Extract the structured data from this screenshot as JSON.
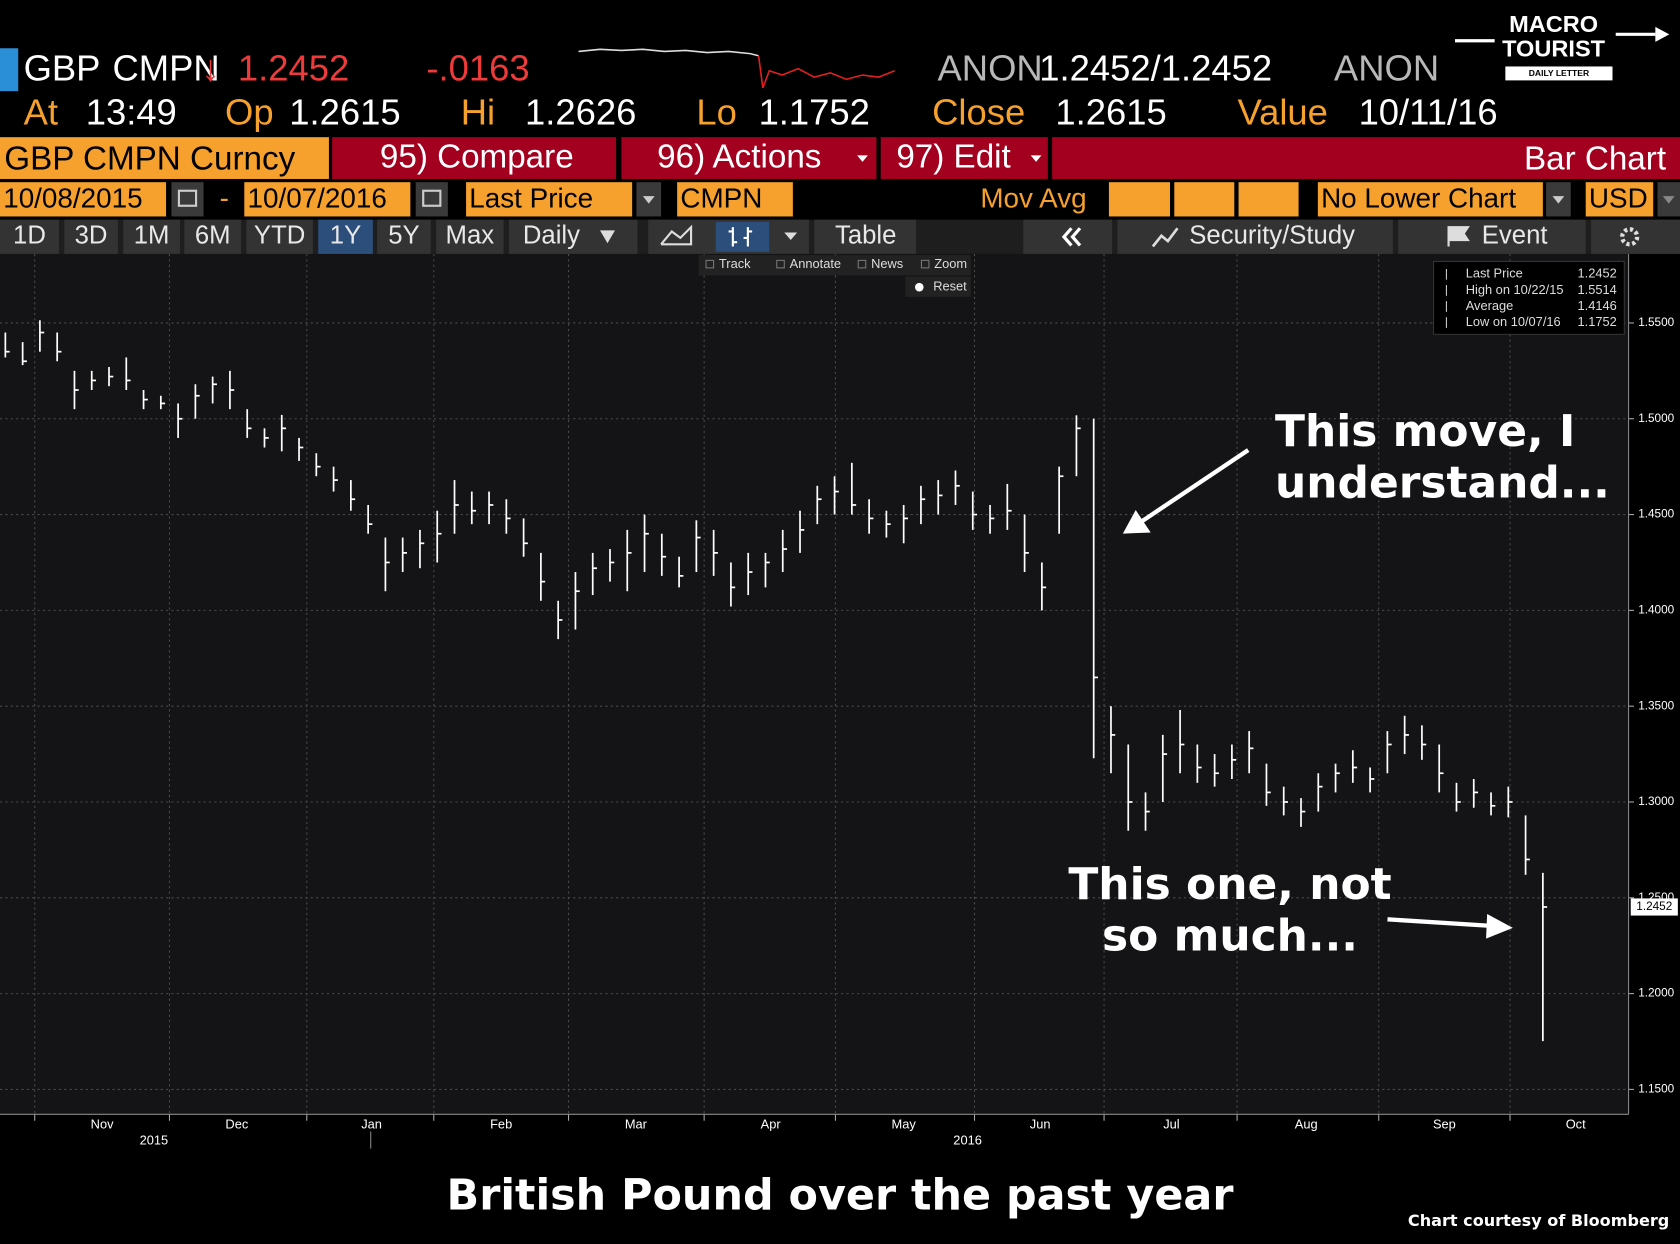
{
  "ticker": {
    "symbol": "GBP",
    "source": "CMPN",
    "arrow": "↓",
    "price": "1.2452",
    "change": "-.0163",
    "bid_source": "ANON",
    "bid_ask": "1.2452/1.2452",
    "ask_source": "ANON"
  },
  "quote_line": [
    {
      "label": "At",
      "value": "13:49"
    },
    {
      "label": "Op",
      "value": "1.2615"
    },
    {
      "label": "Hi",
      "value": "1.2626"
    },
    {
      "label": "Lo",
      "value": "1.1752"
    },
    {
      "label": "Close",
      "value": "1.2615"
    },
    {
      "label": "Value",
      "value": "10/11/16"
    }
  ],
  "logo": {
    "line1": "MACRO",
    "line2": "TOURIST",
    "line3": "DAILY LETTER"
  },
  "menu": {
    "security": "GBP CMPN Curncy",
    "buttons": [
      "95) Compare",
      "96) Actions",
      "97) Edit"
    ],
    "view": "Bar Chart"
  },
  "controls": {
    "start": "10/08/2015",
    "dash": "-",
    "end": "10/07/2016",
    "field": "Last Price",
    "source": "CMPN",
    "study": "Mov Avg",
    "lower": "No Lower Chart",
    "currency": "USD"
  },
  "tabs": [
    "1D",
    "3D",
    "1M",
    "6M",
    "YTD",
    "1Y",
    "5Y",
    "Max",
    "Daily"
  ],
  "tools": {
    "table": "Table",
    "security_study": "Security/Study",
    "event": "Event"
  },
  "chart_tools": [
    "Track",
    "Annotate",
    "News",
    "Zoom"
  ],
  "reset": "Reset",
  "chart_data": {
    "type": "ohlc",
    "color": "#ffffff",
    "grid": true,
    "high": [
      1.545,
      1.54,
      1.5514,
      1.545,
      1.525,
      1.525,
      1.527,
      1.532,
      1.515,
      1.512,
      1.508,
      1.518,
      1.522,
      1.525,
      1.505,
      1.495,
      1.502,
      1.49,
      1.482,
      1.475,
      1.468,
      1.455,
      1.438,
      1.438,
      1.442,
      1.452,
      1.468,
      1.462,
      1.462,
      1.458,
      1.448,
      1.43,
      1.405,
      1.42,
      1.43,
      1.432,
      1.442,
      1.45,
      1.44,
      1.428,
      1.447,
      1.442,
      1.425,
      1.43,
      1.43,
      1.442,
      1.452,
      1.465,
      1.47,
      1.477,
      1.458,
      1.452,
      1.455,
      1.465,
      1.468,
      1.473,
      1.462,
      1.455,
      1.466,
      1.45,
      1.425,
      1.475,
      1.5018,
      1.5,
      1.35,
      1.33,
      1.305,
      1.335,
      1.348,
      1.33,
      1.325,
      1.33,
      1.337,
      1.32,
      1.308,
      1.302,
      1.315,
      1.32,
      1.327,
      1.318,
      1.337,
      1.345,
      1.34,
      1.33,
      1.31,
      1.312,
      1.305,
      1.308,
      1.293,
      1.263
    ],
    "low": [
      1.532,
      1.528,
      1.535,
      1.53,
      1.505,
      1.515,
      1.517,
      1.515,
      1.505,
      1.505,
      1.49,
      1.5,
      1.508,
      1.505,
      1.49,
      1.485,
      1.483,
      1.478,
      1.47,
      1.462,
      1.452,
      1.44,
      1.41,
      1.42,
      1.422,
      1.425,
      1.44,
      1.445,
      1.445,
      1.44,
      1.428,
      1.405,
      1.385,
      1.39,
      1.408,
      1.415,
      1.41,
      1.42,
      1.418,
      1.412,
      1.42,
      1.418,
      1.402,
      1.408,
      1.412,
      1.42,
      1.43,
      1.445,
      1.45,
      1.45,
      1.44,
      1.438,
      1.435,
      1.445,
      1.45,
      1.455,
      1.442,
      1.44,
      1.442,
      1.42,
      1.4,
      1.44,
      1.47,
      1.3228,
      1.315,
      1.285,
      1.285,
      1.3,
      1.315,
      1.31,
      1.308,
      1.312,
      1.315,
      1.298,
      1.293,
      1.287,
      1.295,
      1.305,
      1.31,
      1.305,
      1.315,
      1.325,
      1.322,
      1.305,
      1.295,
      1.297,
      1.293,
      1.292,
      1.262,
      1.1752
    ],
    "close": [
      1.535,
      1.53,
      1.545,
      1.535,
      1.515,
      1.52,
      1.522,
      1.52,
      1.51,
      1.508,
      1.5,
      1.512,
      1.518,
      1.515,
      1.495,
      1.49,
      1.495,
      1.485,
      1.475,
      1.468,
      1.458,
      1.445,
      1.425,
      1.43,
      1.435,
      1.44,
      1.455,
      1.452,
      1.455,
      1.448,
      1.435,
      1.415,
      1.395,
      1.41,
      1.422,
      1.425,
      1.43,
      1.44,
      1.428,
      1.418,
      1.438,
      1.43,
      1.412,
      1.42,
      1.425,
      1.432,
      1.442,
      1.458,
      1.462,
      1.455,
      1.448,
      1.445,
      1.448,
      1.458,
      1.46,
      1.465,
      1.45,
      1.448,
      1.452,
      1.43,
      1.412,
      1.47,
      1.495,
      1.365,
      1.335,
      1.3,
      1.295,
      1.325,
      1.33,
      1.318,
      1.315,
      1.322,
      1.328,
      1.305,
      1.3,
      1.295,
      1.308,
      1.315,
      1.318,
      1.312,
      1.33,
      1.335,
      1.33,
      1.315,
      1.3,
      1.305,
      1.298,
      1.3,
      1.27,
      1.2452
    ],
    "ylim": [
      1.137,
      1.586
    ],
    "yticks": [
      {
        "value": 1.15,
        "label": "1.1500"
      },
      {
        "value": 1.2,
        "label": "1.2000"
      },
      {
        "value": 1.25,
        "label": "1.2500"
      },
      {
        "value": 1.3,
        "label": "1.3000"
      },
      {
        "value": 1.35,
        "label": "1.3500"
      },
      {
        "value": 1.4,
        "label": "1.4000"
      },
      {
        "value": 1.45,
        "label": "1.4500"
      },
      {
        "value": 1.5,
        "label": "1.5000"
      },
      {
        "value": 1.55,
        "label": "1.5500"
      }
    ],
    "xticks": [
      {
        "value": 5.6,
        "label": "Nov"
      },
      {
        "value": 13.4,
        "label": "Dec"
      },
      {
        "value": 21.2,
        "label": "Jan"
      },
      {
        "value": 28.7,
        "label": "Feb"
      },
      {
        "value": 36.5,
        "label": "Mar"
      },
      {
        "value": 44.3,
        "label": "Apr"
      },
      {
        "value": 52.0,
        "label": "May"
      },
      {
        "value": 59.9,
        "label": "Jun"
      },
      {
        "value": 67.5,
        "label": "Jul"
      },
      {
        "value": 75.3,
        "label": "Aug"
      },
      {
        "value": 83.3,
        "label": "Sep"
      },
      {
        "value": 90.9,
        "label": "Oct"
      }
    ],
    "year_labels": [
      {
        "value": 8.6,
        "label": "2015"
      },
      {
        "value": 55.7,
        "label": "2016"
      }
    ],
    "price_tag": "1.2452",
    "legend": [
      {
        "label": "Last Price",
        "value": "1.2452"
      },
      {
        "label": "High on 10/22/15",
        "value": "1.5514"
      },
      {
        "label": "Average",
        "value": "1.4146"
      },
      {
        "label": "Low on 10/07/16",
        "value": "1.1752"
      }
    ],
    "annotations": [
      {
        "lines": [
          "This move, I",
          "understand..."
        ]
      },
      {
        "lines": [
          "This one, not",
          "so much..."
        ]
      }
    ]
  },
  "caption": "British Pound over the past year",
  "credit": "Chart courtesy of Bloomberg"
}
